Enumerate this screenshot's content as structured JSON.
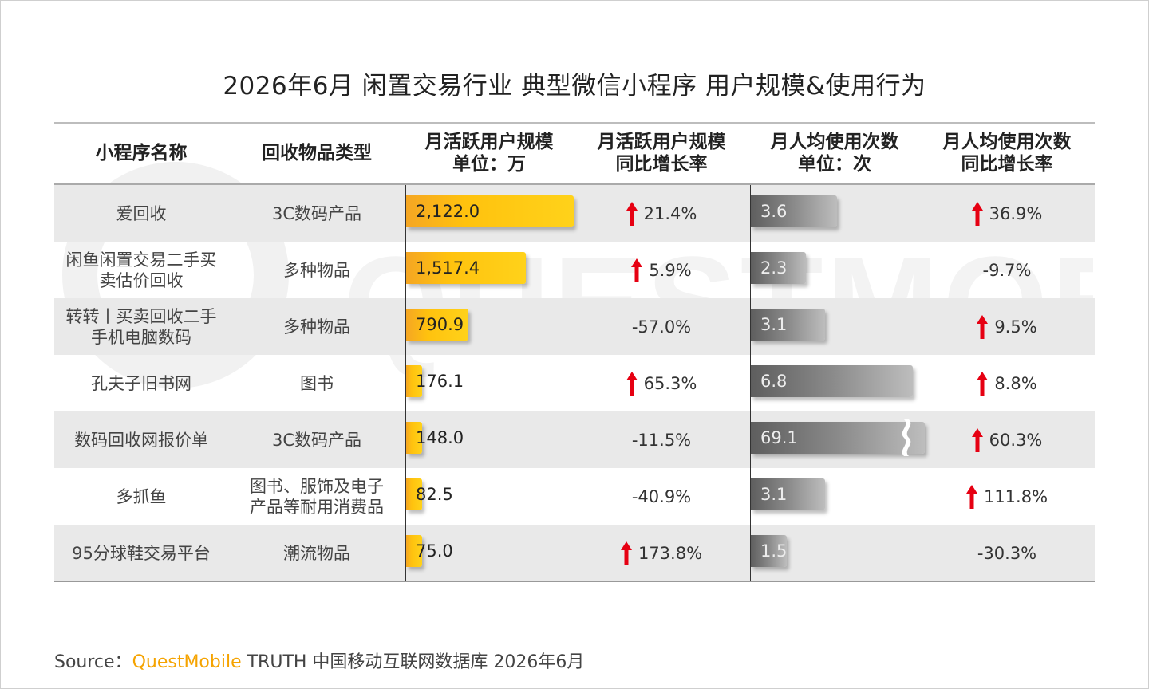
{
  "title": "2026年6月 闲置交易行业 典型微信小程序 用户规模&使用行为",
  "headers": {
    "name": "小程序名称",
    "type": "回收物品类型",
    "mau": [
      "月活跃用户规模",
      "单位：万"
    ],
    "mau_yoy": [
      "月活跃用户规模",
      "同比增长率"
    ],
    "usage": [
      "月人均使用次数",
      "单位：次"
    ],
    "usage_yoy": [
      "月人均使用次数",
      "同比增长率"
    ]
  },
  "chart_data": {
    "type": "table",
    "columns": [
      "小程序名称",
      "回收物品类型",
      "月活跃用户规模 单位：万",
      "月活跃用户规模 同比增长率",
      "月人均使用次数 单位：次",
      "月人均使用次数 同比增长率"
    ],
    "rows": [
      {
        "name": [
          "爱回收"
        ],
        "type": [
          "3C数码产品"
        ],
        "mau": 2122.0,
        "mau_label": "2,122.0",
        "mau_yoy": "21.4%",
        "mau_up": true,
        "usage": 3.6,
        "usage_label": "3.6",
        "usage_yoy": "36.9%",
        "usage_up": true
      },
      {
        "name": [
          "闲鱼闲置交易二手买",
          "卖估价回收"
        ],
        "type": [
          "多种物品"
        ],
        "mau": 1517.4,
        "mau_label": "1,517.4",
        "mau_yoy": "5.9%",
        "mau_up": true,
        "usage": 2.3,
        "usage_label": "2.3",
        "usage_yoy": "-9.7%",
        "usage_up": false
      },
      {
        "name": [
          "转转丨买卖回收二手",
          "手机电脑数码"
        ],
        "type": [
          "多种物品"
        ],
        "mau": 790.9,
        "mau_label": "790.9",
        "mau_yoy": "-57.0%",
        "mau_up": false,
        "usage": 3.1,
        "usage_label": "3.1",
        "usage_yoy": "9.5%",
        "usage_up": true
      },
      {
        "name": [
          "孔夫子旧书网"
        ],
        "type": [
          "图书"
        ],
        "mau": 176.1,
        "mau_label": "176.1",
        "mau_yoy": "65.3%",
        "mau_up": true,
        "usage": 6.8,
        "usage_label": "6.8",
        "usage_yoy": "8.8%",
        "usage_up": true
      },
      {
        "name": [
          "数码回收网报价单"
        ],
        "type": [
          "3C数码产品"
        ],
        "mau": 148.0,
        "mau_label": "148.0",
        "mau_yoy": "-11.5%",
        "mau_up": false,
        "usage": 69.1,
        "usage_label": "69.1",
        "usage_yoy": "60.3%",
        "usage_up": true,
        "usage_broken": true
      },
      {
        "name": [
          "多抓鱼"
        ],
        "type": [
          "图书、服饰及电子",
          "产品等耐用消费品"
        ],
        "mau": 82.5,
        "mau_label": "82.5",
        "mau_yoy": "-40.9%",
        "mau_up": false,
        "usage": 3.1,
        "usage_label": "3.1",
        "usage_yoy": "111.8%",
        "usage_up": true
      },
      {
        "name": [
          "95分球鞋交易平台"
        ],
        "type": [
          "潮流物品"
        ],
        "mau": 75.0,
        "mau_label": "75.0",
        "mau_yoy": "173.8%",
        "mau_up": true,
        "usage": 1.5,
        "usage_label": "1.5",
        "usage_yoy": "-30.3%",
        "usage_up": false
      }
    ]
  },
  "source": {
    "prefix": "Source：",
    "brand": "QuestMobile",
    "rest": " TRUTH 中国移动互联网数据库 2026年6月"
  },
  "watermark_text": "QUESTMOBILE",
  "colors": {
    "bar_yellow": "#ffc20e",
    "bar_gray": "#8a8a8a",
    "arrow_up": "#e60012",
    "brand_orange": "#f5a300",
    "row_shade": "#e9e9e9"
  }
}
